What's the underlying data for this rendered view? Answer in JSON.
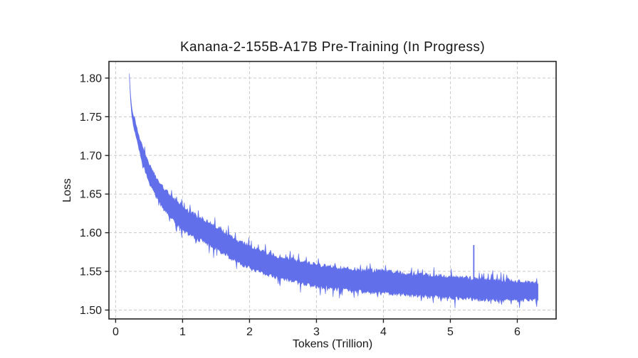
{
  "figure": {
    "background": "#ffffff"
  },
  "chart_data": {
    "type": "line",
    "title": "Kanana-2-155B-A17B Pre-Training (In Progress)",
    "xlabel": "Tokens (Trillion)",
    "ylabel": "Loss",
    "xlim": [
      -0.1,
      6.58
    ],
    "ylim": [
      1.4885,
      1.8215
    ],
    "xticks": [
      0,
      1,
      2,
      3,
      4,
      5,
      6
    ],
    "xtick_labels": [
      "0",
      "1",
      "2",
      "3",
      "4",
      "5",
      "6"
    ],
    "yticks": [
      1.5,
      1.55,
      1.6,
      1.65,
      1.7,
      1.75,
      1.8
    ],
    "ytick_labels": [
      "1.50",
      "1.55",
      "1.60",
      "1.65",
      "1.70",
      "1.75",
      "1.80"
    ],
    "grid": true,
    "grid_style": "dashed",
    "grid_color": "#c9c9c9",
    "axis_color": "#222222",
    "legend": null,
    "series": [
      {
        "name": "pre-training loss",
        "color": "#6170ea",
        "x_start": 0.205,
        "x_end": 6.31,
        "start_loss": 1.806,
        "end_loss": 1.524,
        "median_curve": [
          [
            0.205,
            1.8
          ],
          [
            0.215,
            1.786
          ],
          [
            0.225,
            1.772
          ],
          [
            0.24,
            1.757
          ],
          [
            0.26,
            1.747
          ],
          [
            0.28,
            1.74
          ],
          [
            0.3,
            1.734
          ],
          [
            0.35,
            1.716
          ],
          [
            0.4,
            1.701
          ],
          [
            0.45,
            1.688
          ],
          [
            0.5,
            1.677
          ],
          [
            0.55,
            1.668
          ],
          [
            0.6,
            1.66
          ],
          [
            0.65,
            1.6525
          ],
          [
            0.7,
            1.646
          ],
          [
            0.8,
            1.6355
          ],
          [
            0.9,
            1.6265
          ],
          [
            1.0,
            1.619
          ],
          [
            1.1,
            1.6123
          ],
          [
            1.25,
            1.6055
          ],
          [
            1.4,
            1.599
          ],
          [
            1.5,
            1.5935
          ],
          [
            1.75,
            1.5795
          ],
          [
            2.0,
            1.568
          ],
          [
            2.25,
            1.56
          ],
          [
            2.5,
            1.554
          ],
          [
            2.75,
            1.549
          ],
          [
            3.0,
            1.5445
          ],
          [
            3.25,
            1.5415
          ],
          [
            3.5,
            1.5395
          ],
          [
            3.75,
            1.5375
          ],
          [
            4.0,
            1.536
          ],
          [
            4.25,
            1.534
          ],
          [
            4.5,
            1.5325
          ],
          [
            4.75,
            1.531
          ],
          [
            5.0,
            1.5295
          ],
          [
            5.25,
            1.528
          ],
          [
            5.5,
            1.527
          ],
          [
            5.75,
            1.526
          ],
          [
            6.0,
            1.525
          ],
          [
            6.31,
            1.524
          ]
        ],
        "noise_halfwidth": [
          [
            0.205,
            0.0025
          ],
          [
            0.23,
            0.005
          ],
          [
            0.27,
            0.008
          ],
          [
            0.32,
            0.01
          ],
          [
            0.4,
            0.0125
          ],
          [
            0.5,
            0.0145
          ],
          [
            0.7,
            0.016
          ],
          [
            1.0,
            0.018
          ],
          [
            1.5,
            0.017
          ],
          [
            2.5,
            0.0165
          ],
          [
            3.5,
            0.017
          ],
          [
            4.5,
            0.017
          ],
          [
            5.5,
            0.016
          ],
          [
            6.0,
            0.015
          ],
          [
            6.31,
            0.0125
          ]
        ],
        "anomaly_spike": {
          "x": 5.35,
          "peak_loss": 1.584
        }
      }
    ]
  }
}
